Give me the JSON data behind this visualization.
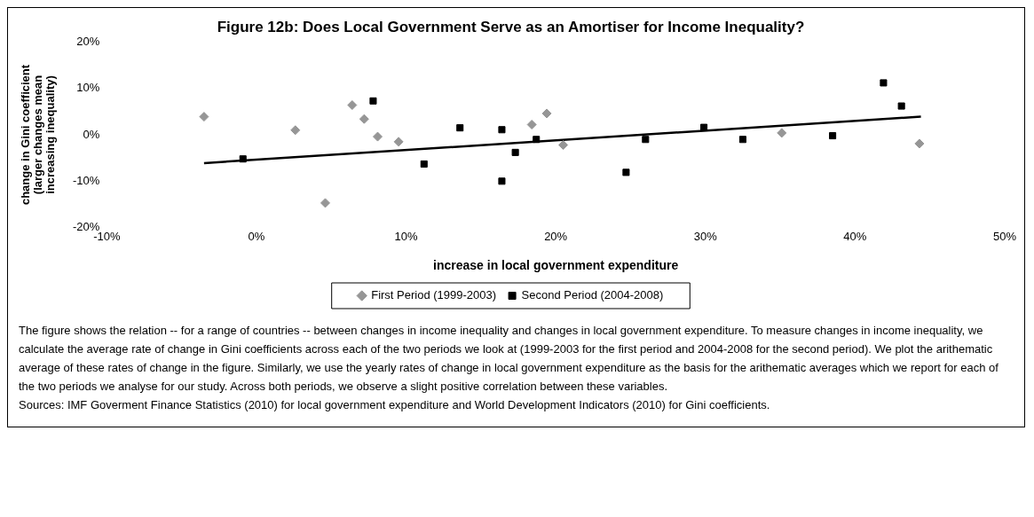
{
  "chart_data": {
    "type": "scatter",
    "title": "Figure 12b: Does Local Government Serve as an Amortiser for Income Inequality?",
    "xlabel": "increase in local government expenditure",
    "ylabel": "change in Gini coefficient\n(larger changes mean\nincreasing inequality)",
    "xlim": [
      -10,
      50
    ],
    "xticks": [
      {
        "value": -10,
        "label": "-10%"
      },
      {
        "value": 0,
        "label": "0%"
      },
      {
        "value": 10,
        "label": "10%"
      },
      {
        "value": 20,
        "label": "20%"
      },
      {
        "value": 30,
        "label": "30%"
      },
      {
        "value": 40,
        "label": "40%"
      },
      {
        "value": 50,
        "label": "50%"
      }
    ],
    "ylim": [
      -20,
      20
    ],
    "yticks": [
      {
        "value": -20,
        "label": "-20%"
      },
      {
        "value": -10,
        "label": "-10%"
      },
      {
        "value": 0,
        "label": "0%"
      },
      {
        "value": 10,
        "label": "10%"
      },
      {
        "value": 20,
        "label": "20%"
      }
    ],
    "grid": false,
    "legend": "bottom",
    "series": [
      {
        "name": "First Period (1999-2003)",
        "color": "#969696",
        "marker": "diamond",
        "x": [
          -3.5,
          2.6,
          4.6,
          6.4,
          7.2,
          8.1,
          9.5,
          18.4,
          19.4,
          20.5,
          35.1,
          44.3
        ],
        "values": [
          3.9,
          1.0,
          -14.7,
          6.4,
          3.4,
          -0.4,
          -1.5,
          2.2,
          4.6,
          -2.2,
          0.4,
          -1.9
        ]
      },
      {
        "name": "Second Period (2004-2008)",
        "color": "#000000",
        "marker": "square",
        "x": [
          -0.9,
          7.8,
          11.2,
          13.6,
          16.4,
          16.4,
          17.3,
          18.7,
          24.7,
          26.0,
          29.9,
          32.5,
          38.5,
          41.9,
          43.1
        ],
        "values": [
          -5.2,
          7.3,
          -6.3,
          1.5,
          1.1,
          -10.0,
          -3.8,
          -1.0,
          -8.1,
          -1.0,
          1.6,
          -1.0,
          -0.2,
          11.2,
          6.2
        ]
      },
      {
        "type": "line",
        "color": "#000000",
        "marker": "none",
        "x": [
          -3.5,
          44.4
        ],
        "values": [
          -6.1,
          3.9
        ]
      }
    ],
    "annotations": [
      "The figure shows the relation -- for a range of countries -- between changes in income inequality and changes in local government expenditure. To measure changes in income inequality, we calculate the average rate of change in Gini coefficients across each of the two periods we look at (1999-2003 for the first period and 2004-2008 for the second period). We plot the arithematic average of these rates of change in the figure. Similarly, we use the yearly rates of change in local government expenditure as the basis for the arithematic averages which we report for each of the two periods we analyse for our study. Across both periods, we observe a slight positive correlation between these variables.",
      "Sources: IMF Goverment Finance Statistics (2010) for local government expenditure and World Development Indicators (2010) for Gini coefficients."
    ]
  }
}
